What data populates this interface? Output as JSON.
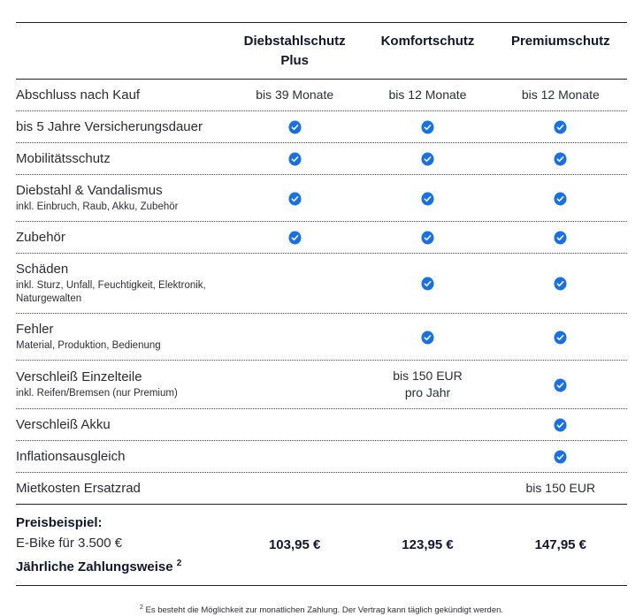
{
  "colors": {
    "accent": "#1670e8",
    "text_dark": "#14142e",
    "text_body": "#2b2b33"
  },
  "icons": {
    "check": "check-icon",
    "check_glyph": "✓"
  },
  "table": {
    "columns": [
      "Diebstahlschutz Plus",
      "Komfortschutz",
      "Premiumschutz"
    ],
    "rows": [
      {
        "label": "Abschluss nach Kauf",
        "sublabel": "",
        "cells": [
          "bis 39 Monate",
          "bis 12 Monate",
          "bis 12 Monate"
        ]
      },
      {
        "label": "bis 5 Jahre Versicherungsdauer",
        "sublabel": "",
        "cells": [
          "check",
          "check",
          "check"
        ]
      },
      {
        "label": "Mobilitätsschutz",
        "sublabel": "",
        "cells": [
          "check",
          "check",
          "check"
        ]
      },
      {
        "label": "Diebstahl & Vandalismus",
        "sublabel": "inkl. Einbruch, Raub, Akku, Zubehör",
        "cells": [
          "check",
          "check",
          "check"
        ]
      },
      {
        "label": "Zubehör",
        "sublabel": "",
        "cells": [
          "check",
          "check",
          "check"
        ]
      },
      {
        "label": "Schäden",
        "sublabel": "inkl. Sturz, Unfall, Feuchtigkeit, Elektronik, Naturgewalten",
        "cells": [
          "",
          "check",
          "check"
        ]
      },
      {
        "label": "Fehler",
        "sublabel": "Material, Produktion, Bedienung",
        "cells": [
          "",
          "check",
          "check"
        ]
      },
      {
        "label": "Verschleiß Einzelteile",
        "sublabel": "inkl. Reifen/Bremsen (nur Premium)",
        "cells": [
          "",
          "bis 150 EUR\npro Jahr",
          "check"
        ]
      },
      {
        "label": "Verschleiß Akku",
        "sublabel": "",
        "cells": [
          "",
          "",
          "check"
        ]
      },
      {
        "label": "Inflationsausgleich",
        "sublabel": "",
        "cells": [
          "",
          "",
          "check"
        ]
      },
      {
        "label": "Mietkosten Ersatzrad",
        "sublabel": "",
        "cells": [
          "",
          "",
          "bis 150 EUR"
        ]
      }
    ],
    "price_row": {
      "title": "Preisbeispiel:",
      "line2": "E-Bike für 3.500 €",
      "line3": "Jährliche Zahlungsweise",
      "footnote_marker": "2",
      "prices": [
        "103,95 €",
        "123,95 €",
        "147,95 €"
      ]
    }
  },
  "footnote": {
    "marker": "2",
    "text": " Es besteht die Möglichkeit zur monatlichen Zahlung. Der Vertrag kann täglich gekündigt werden."
  }
}
